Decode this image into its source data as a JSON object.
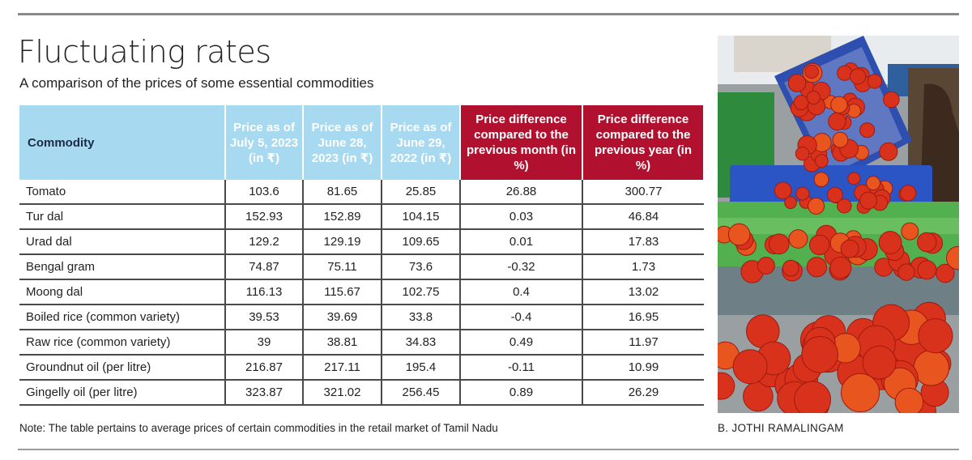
{
  "title": "Fluctuating rates",
  "subtitle": "A comparison of the prices of some essential commodities",
  "table": {
    "headers": [
      "Commodity",
      "Price as of July 5, 2023 (in ₹)",
      "Price as of June 28, 2023 (in ₹)",
      "Price as of June 29, 2022 (in ₹)",
      "Price difference compared to the previous month (in %)",
      "Price difference compared to the previous year (in %)"
    ],
    "rows": [
      [
        "Tomato",
        "103.6",
        "81.65",
        "25.85",
        "26.88",
        "300.77"
      ],
      [
        "Tur dal",
        "152.93",
        "152.89",
        "104.15",
        "0.03",
        "46.84"
      ],
      [
        "Urad dal",
        "129.2",
        "129.19",
        "109.65",
        "0.01",
        "17.83"
      ],
      [
        "Bengal gram",
        "74.87",
        "75.11",
        "73.6",
        "-0.32",
        "1.73"
      ],
      [
        "Moong dal",
        "116.13",
        "115.67",
        "102.75",
        "0.4",
        "13.02"
      ],
      [
        "Boiled rice (common variety)",
        "39.53",
        "39.69",
        "33.8",
        "-0.4",
        "16.95"
      ],
      [
        "Raw rice (common variety)",
        "39",
        "38.81",
        "34.83",
        "0.49",
        "11.97"
      ],
      [
        "Groundnut oil (per litre)",
        "216.87",
        "217.11",
        "195.4",
        "-0.11",
        "10.99"
      ],
      [
        "Gingelly oil (per litre)",
        "323.87",
        "321.02",
        "256.45",
        "0.89",
        "26.29"
      ]
    ]
  },
  "note": "Note: The table pertains to average prices of certain commodities in the retail market of Tamil Nadu",
  "photo_credit": "B. JOTHI RAMALINGAM",
  "colors": {
    "header_blue": "#a7d9f0",
    "header_red": "#b2102f",
    "tomato_red": "#d8321c"
  }
}
